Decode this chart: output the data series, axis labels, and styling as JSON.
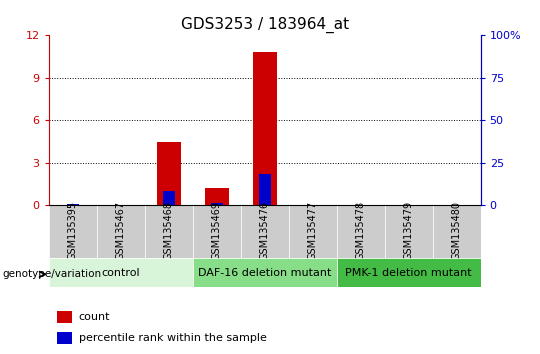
{
  "title": "GDS3253 / 183964_at",
  "samples": [
    "GSM135395",
    "GSM135467",
    "GSM135468",
    "GSM135469",
    "GSM135476",
    "GSM135477",
    "GSM135478",
    "GSM135479",
    "GSM135480"
  ],
  "count_values": [
    0,
    0,
    4.5,
    1.2,
    10.8,
    0,
    0,
    0,
    0
  ],
  "percentile_values": [
    1.0,
    0,
    8.5,
    1.5,
    18.5,
    0,
    0,
    0,
    0
  ],
  "ylim_left": [
    0,
    12
  ],
  "ylim_right": [
    0,
    100
  ],
  "yticks_left": [
    0,
    3,
    6,
    9,
    12
  ],
  "yticks_right": [
    0,
    25,
    50,
    75,
    100
  ],
  "ytick_labels_right": [
    "0",
    "25",
    "50",
    "75",
    "100%"
  ],
  "groups": [
    {
      "label": "control",
      "start": 0,
      "end": 3,
      "color": "#d9f5d9"
    },
    {
      "label": "DAF-16 deletion mutant",
      "start": 3,
      "end": 6,
      "color": "#88dd88"
    },
    {
      "label": "PMK-1 deletion mutant",
      "start": 6,
      "end": 9,
      "color": "#44bb44"
    }
  ],
  "bar_color_red": "#cc0000",
  "bar_color_blue": "#0000cc",
  "genotype_label": "genotype/variation",
  "legend_count": "count",
  "legend_pct": "percentile rank within the sample",
  "sample_bg_color": "#cccccc",
  "title_fontsize": 11,
  "tick_fontsize": 8,
  "sample_fontsize": 7,
  "group_fontsize": 8,
  "legend_fontsize": 8
}
